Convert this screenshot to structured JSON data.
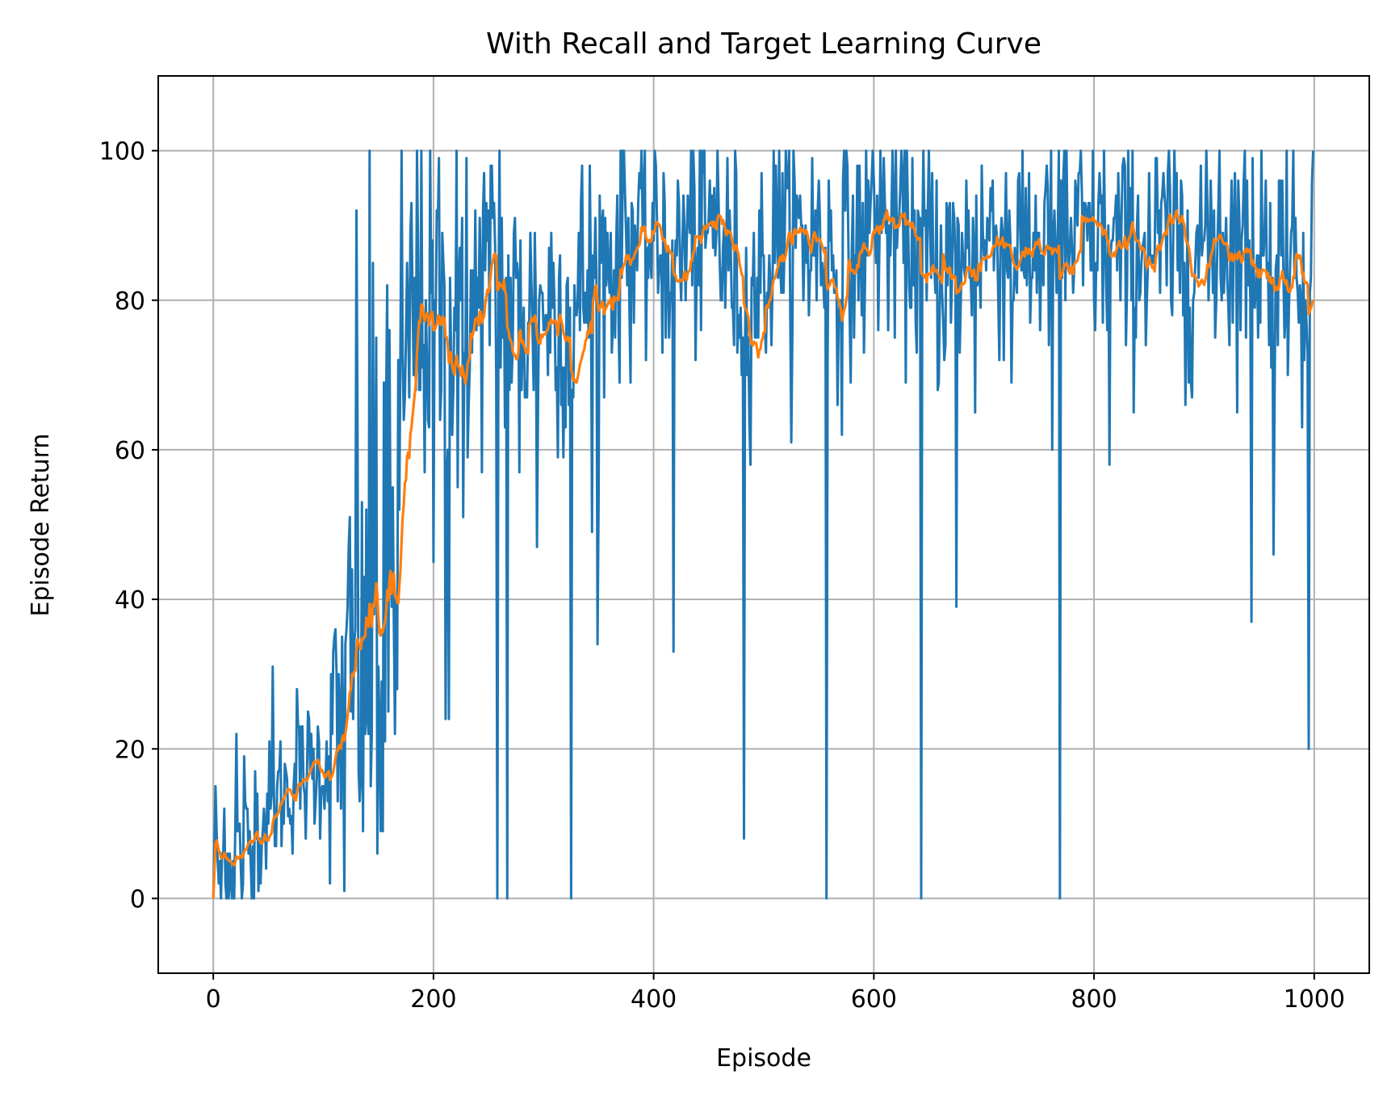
{
  "chart_data": {
    "type": "line",
    "title": "With Recall and Target Learning Curve",
    "xlabel": "Episode",
    "ylabel": "Episode Return",
    "xlim": [
      -50,
      1050
    ],
    "ylim": [
      -10,
      110
    ],
    "xticks": [
      0,
      200,
      400,
      600,
      800,
      1000
    ],
    "yticks": [
      0,
      20,
      40,
      60,
      80,
      100
    ],
    "grid": true,
    "legend": "none",
    "series": [
      {
        "name": "Episode Return",
        "color": "#1f77b4",
        "generated": true,
        "num_points": 1000,
        "anchors": [
          [
            0,
            3
          ],
          [
            20,
            6
          ],
          [
            40,
            9
          ],
          [
            60,
            14
          ],
          [
            80,
            16
          ],
          [
            100,
            18
          ],
          [
            115,
            21
          ],
          [
            125,
            26
          ],
          [
            135,
            38
          ],
          [
            145,
            34
          ],
          [
            155,
            32
          ],
          [
            165,
            46
          ],
          [
            175,
            66
          ],
          [
            190,
            78
          ],
          [
            200,
            76
          ],
          [
            215,
            77
          ],
          [
            225,
            70
          ],
          [
            240,
            80
          ],
          [
            255,
            83
          ],
          [
            270,
            78
          ],
          [
            290,
            78
          ],
          [
            310,
            80
          ],
          [
            330,
            78
          ],
          [
            340,
            83
          ],
          [
            360,
            85
          ],
          [
            380,
            88
          ],
          [
            400,
            88
          ],
          [
            420,
            87
          ],
          [
            450,
            89
          ],
          [
            470,
            85
          ],
          [
            485,
            80
          ],
          [
            500,
            84
          ],
          [
            520,
            88
          ],
          [
            550,
            88
          ],
          [
            570,
            83
          ],
          [
            580,
            86
          ],
          [
            600,
            89
          ],
          [
            630,
            90
          ],
          [
            650,
            84
          ],
          [
            670,
            84
          ],
          [
            690,
            87
          ],
          [
            710,
            89
          ],
          [
            740,
            87
          ],
          [
            770,
            88
          ],
          [
            790,
            87
          ],
          [
            810,
            88
          ],
          [
            830,
            86
          ],
          [
            850,
            88
          ],
          [
            870,
            86
          ],
          [
            900,
            88
          ],
          [
            930,
            88
          ],
          [
            950,
            86
          ],
          [
            970,
            85
          ],
          [
            999,
            86
          ]
        ],
        "noise_sd": [
          [
            0,
            4
          ],
          [
            100,
            5
          ],
          [
            125,
            18
          ],
          [
            160,
            22
          ],
          [
            175,
            12
          ],
          [
            260,
            10
          ],
          [
            400,
            8
          ],
          [
            999,
            8
          ]
        ],
        "dips": [
          [
            2,
            15
          ],
          [
            7,
            0
          ],
          [
            10,
            12
          ],
          [
            19,
            0
          ],
          [
            21,
            22
          ],
          [
            26,
            0
          ],
          [
            28,
            19
          ],
          [
            35,
            0
          ],
          [
            38,
            17
          ],
          [
            54,
            31
          ],
          [
            76,
            28
          ],
          [
            109,
            33
          ],
          [
            130,
            92
          ],
          [
            136,
            9
          ],
          [
            142,
            100
          ],
          [
            148,
            75
          ],
          [
            154,
            9
          ],
          [
            155,
            69
          ],
          [
            160,
            76
          ],
          [
            165,
            22
          ],
          [
            171,
            100
          ],
          [
            180,
            93
          ],
          [
            185,
            100
          ],
          [
            200,
            45
          ],
          [
            205,
            99
          ],
          [
            211,
            24
          ],
          [
            214,
            24
          ],
          [
            221,
            100
          ],
          [
            227,
            51
          ],
          [
            230,
            99
          ],
          [
            246,
            97
          ],
          [
            258,
            0
          ],
          [
            260,
            100
          ],
          [
            267,
            0
          ],
          [
            278,
            57
          ],
          [
            294,
            47
          ],
          [
            313,
            59
          ],
          [
            325,
            0
          ],
          [
            335,
            98
          ],
          [
            344,
            49
          ],
          [
            349,
            34
          ],
          [
            373,
            100
          ],
          [
            418,
            33
          ],
          [
            434,
            100
          ],
          [
            458,
            100
          ],
          [
            482,
            8
          ],
          [
            514,
            100
          ],
          [
            557,
            0
          ],
          [
            573,
            100
          ],
          [
            599,
            100
          ],
          [
            606,
            100
          ],
          [
            643,
            0
          ],
          [
            650,
            100
          ],
          [
            675,
            39
          ],
          [
            692,
            65
          ],
          [
            725,
            69
          ],
          [
            762,
            60
          ],
          [
            769,
            0
          ],
          [
            773,
            100
          ],
          [
            814,
            58
          ],
          [
            868,
            100
          ],
          [
            883,
            66
          ],
          [
            914,
            100
          ],
          [
            943,
            37
          ],
          [
            952,
            100
          ],
          [
            963,
            46
          ],
          [
            975,
            100
          ],
          [
            989,
            63
          ],
          [
            995,
            20
          ],
          [
            999,
            100
          ]
        ]
      },
      {
        "name": "Moving Average",
        "color": "#ff7f0e",
        "generated": true,
        "window": 20,
        "source": "Episode Return"
      }
    ]
  }
}
